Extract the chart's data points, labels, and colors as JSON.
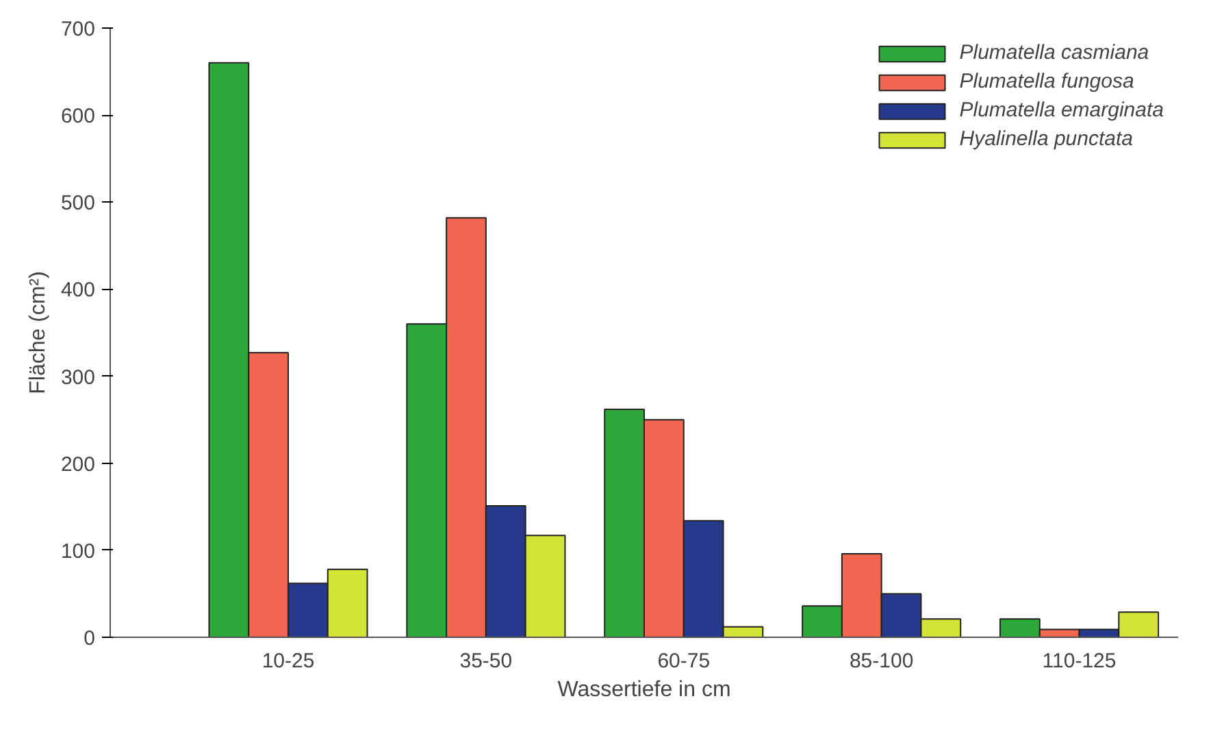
{
  "chart_data": {
    "type": "bar",
    "xlabel": "Wassertiefe in cm",
    "ylabel": "Fläche (cm²)",
    "categories": [
      "10-25",
      "35-50",
      "60-75",
      "85-100",
      "110-125"
    ],
    "series": [
      {
        "name": "Plumatella casmiana",
        "color": "#2ea83a",
        "values": [
          660,
          360,
          262,
          36,
          21
        ]
      },
      {
        "name": "Plumatella fungosa",
        "color": "#f0674f",
        "values": [
          327,
          482,
          250,
          96,
          9
        ]
      },
      {
        "name": "Plumatella emarginata",
        "color": "#26398a",
        "values": [
          62,
          151,
          134,
          50,
          9
        ]
      },
      {
        "name": "Hyalinella punctata",
        "color": "#d4e337",
        "values": [
          78,
          117,
          12,
          21,
          29
        ]
      }
    ],
    "ylim": [
      0,
      700
    ],
    "yticks": [
      0,
      100,
      200,
      300,
      400,
      500,
      600,
      700
    ],
    "grid": false,
    "legend": "top right"
  }
}
